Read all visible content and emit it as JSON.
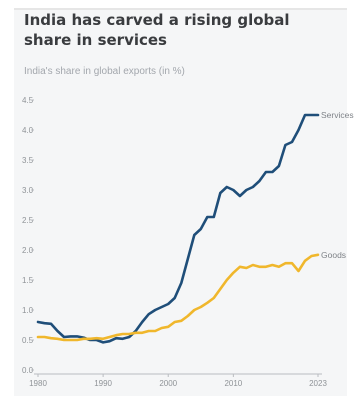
{
  "title": "India has carved a rising global share in services",
  "subtitle": "India's share in global exports (in %)",
  "colors": {
    "services": "#1f4e79",
    "goods": "#f0b72c",
    "grid": "#d0d3d6",
    "axis": "#b9bcc0"
  },
  "chart_data": {
    "type": "line",
    "title": "India has carved a rising global share in services",
    "subtitle": "India's share in global exports (in %)",
    "xlabel": "",
    "ylabel": "",
    "xlim": [
      1980,
      2023
    ],
    "ylim": [
      0,
      4.5
    ],
    "x_ticks": [
      {
        "v": 1980,
        "label": "1980"
      },
      {
        "v": 1990,
        "label": "1990"
      },
      {
        "v": 2000,
        "label": "2000"
      },
      {
        "v": 2010,
        "label": "2010"
      },
      {
        "v": 2023,
        "label": "2023"
      }
    ],
    "y_ticks": [
      {
        "v": 0,
        "label": "0.0"
      },
      {
        "v": 0.5,
        "label": "0.5"
      },
      {
        "v": 1,
        "label": "1.0"
      },
      {
        "v": 1.5,
        "label": "1.5"
      },
      {
        "v": 2,
        "label": "2.0"
      },
      {
        "v": 2.5,
        "label": "2.5"
      },
      {
        "v": 3,
        "label": "3.0"
      },
      {
        "v": 3.5,
        "label": "3.5"
      },
      {
        "v": 4,
        "label": "4.0"
      },
      {
        "v": 4.5,
        "label": "4.5"
      }
    ],
    "series": [
      {
        "name": "Services",
        "color": "#1f4e79",
        "x": [
          1980,
          1981,
          1982,
          1983,
          1984,
          1985,
          1986,
          1987,
          1988,
          1989,
          1990,
          1991,
          1992,
          1993,
          1994,
          1995,
          1996,
          1997,
          1998,
          1999,
          2000,
          2001,
          2002,
          2003,
          2004,
          2005,
          2006,
          2007,
          2008,
          2009,
          2010,
          2011,
          2012,
          2013,
          2014,
          2015,
          2016,
          2017,
          2018,
          2019,
          2020,
          2021,
          2022,
          2023
        ],
        "values": [
          0.8,
          0.78,
          0.77,
          0.65,
          0.55,
          0.56,
          0.56,
          0.54,
          0.5,
          0.5,
          0.46,
          0.48,
          0.53,
          0.52,
          0.55,
          0.65,
          0.8,
          0.93,
          1.0,
          1.05,
          1.1,
          1.2,
          1.45,
          1.85,
          2.25,
          2.35,
          2.55,
          2.55,
          2.95,
          3.05,
          3.0,
          2.9,
          3.0,
          3.05,
          3.15,
          3.3,
          3.3,
          3.4,
          3.75,
          3.8,
          4.0,
          4.25,
          4.25,
          4.25
        ]
      },
      {
        "name": "Goods",
        "color": "#f0b72c",
        "x": [
          1980,
          1981,
          1982,
          1983,
          1984,
          1985,
          1986,
          1987,
          1988,
          1989,
          1990,
          1991,
          1992,
          1993,
          1994,
          1995,
          1996,
          1997,
          1998,
          1999,
          2000,
          2001,
          2002,
          2003,
          2004,
          2005,
          2006,
          2007,
          2008,
          2009,
          2010,
          2011,
          2012,
          2013,
          2014,
          2015,
          2016,
          2017,
          2018,
          2019,
          2020,
          2021,
          2022,
          2023
        ],
        "values": [
          0.55,
          0.55,
          0.53,
          0.52,
          0.5,
          0.5,
          0.5,
          0.52,
          0.52,
          0.53,
          0.52,
          0.55,
          0.58,
          0.6,
          0.6,
          0.62,
          0.62,
          0.65,
          0.65,
          0.7,
          0.72,
          0.8,
          0.82,
          0.9,
          1.0,
          1.05,
          1.12,
          1.2,
          1.35,
          1.5,
          1.62,
          1.72,
          1.7,
          1.75,
          1.72,
          1.72,
          1.75,
          1.72,
          1.78,
          1.78,
          1.65,
          1.82,
          1.9,
          1.92
        ]
      }
    ],
    "grid": false,
    "legend": "direct-labels-right"
  }
}
